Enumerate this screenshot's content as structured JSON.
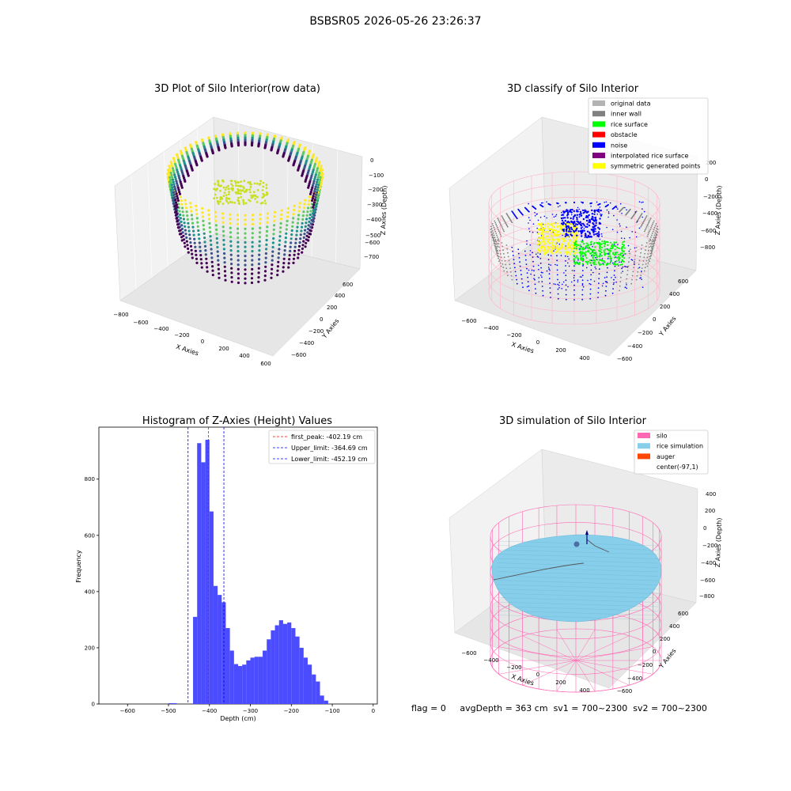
{
  "figure": {
    "suptitle": "BSBSR05 2026-05-26 23:26:37"
  },
  "panels": {
    "raw": {
      "title": "3D Plot of Silo Interior(row data)",
      "xlabel": "X Axies",
      "ylabel": "Y Axies",
      "zlabel": "Z Axies (Depth)",
      "xticks": [
        "−800",
        "−600",
        "−400",
        "−200",
        "0",
        "200",
        "400",
        "600"
      ],
      "yticks": [
        "−600",
        "−400",
        "−200",
        "0",
        "200",
        "400",
        "600"
      ],
      "zticks": [
        "0",
        "−100",
        "−200",
        "−300",
        "−400",
        "−500",
        "−600",
        "−700"
      ]
    },
    "classify": {
      "title": "3D classify of Silo Interior",
      "xlabel": "X Axies",
      "ylabel": "Y Axies",
      "zlabel": "Z Axies (Depth)",
      "xticks": [
        "−600",
        "−400",
        "−200",
        "0",
        "200",
        "400"
      ],
      "yticks": [
        "−600",
        "−400",
        "−200",
        "0",
        "200",
        "400",
        "600"
      ],
      "zticks": [
        "200",
        "0",
        "−200",
        "−400",
        "−600",
        "−800"
      ],
      "legend": [
        {
          "label": "original data",
          "color": "#b3b3b3"
        },
        {
          "label": "inner wall",
          "color": "#808080"
        },
        {
          "label": "rice surface",
          "color": "#00ff00"
        },
        {
          "label": "obstacle",
          "color": "#ff0000"
        },
        {
          "label": "noise",
          "color": "#0000ff"
        },
        {
          "label": "interpolated rice surface",
          "color": "#800080"
        },
        {
          "label": "symmetric generated points",
          "color": "#ffff00"
        }
      ]
    },
    "simulation": {
      "title": "3D simulation of Silo Interior",
      "xlabel": "X Axies",
      "ylabel": "Y Axies",
      "zlabel": "Z Axies (Depth)",
      "xticks": [
        "−600",
        "−400",
        "−200",
        "0",
        "200",
        "400"
      ],
      "yticks": [
        "−600",
        "−400",
        "−200",
        "0",
        "200",
        "400",
        "600"
      ],
      "zticks": [
        "400",
        "200",
        "0",
        "−200",
        "−400",
        "−600",
        "−800"
      ],
      "legend": [
        {
          "label": "silo",
          "color": "#ff69b4"
        },
        {
          "label": "rice simulation",
          "color": "#87ceeb"
        },
        {
          "label": "auger",
          "color": "#ff4500"
        },
        {
          "label": "center(-97,1)",
          "color": ""
        }
      ]
    }
  },
  "chart_data": [
    {
      "type": "bar",
      "title": "Histogram of Z-Axies (Height) Values",
      "xlabel": "Depth (cm)",
      "ylabel": "Frequency",
      "xlim": [
        -670,
        10
      ],
      "ylim": [
        0,
        985
      ],
      "xticks": [
        -600,
        -500,
        -400,
        -300,
        -200,
        -100,
        0
      ],
      "xtick_labels": [
        "−600",
        "−500",
        "−400",
        "−300",
        "−200",
        "−100",
        "0"
      ],
      "yticks": [
        0,
        200,
        400,
        600,
        800
      ],
      "bin_width": 10,
      "bins": [
        {
          "x": -500,
          "value": 3
        },
        {
          "x": -490,
          "value": 3
        },
        {
          "x": -440,
          "value": 310
        },
        {
          "x": -430,
          "value": 928
        },
        {
          "x": -420,
          "value": 860
        },
        {
          "x": -410,
          "value": 940
        },
        {
          "x": -400,
          "value": 685
        },
        {
          "x": -390,
          "value": 420
        },
        {
          "x": -380,
          "value": 388
        },
        {
          "x": -370,
          "value": 362
        },
        {
          "x": -360,
          "value": 270
        },
        {
          "x": -350,
          "value": 190
        },
        {
          "x": -340,
          "value": 142
        },
        {
          "x": -330,
          "value": 135
        },
        {
          "x": -320,
          "value": 140
        },
        {
          "x": -310,
          "value": 155
        },
        {
          "x": -300,
          "value": 165
        },
        {
          "x": -290,
          "value": 168
        },
        {
          "x": -280,
          "value": 168
        },
        {
          "x": -270,
          "value": 190
        },
        {
          "x": -260,
          "value": 230
        },
        {
          "x": -250,
          "value": 262
        },
        {
          "x": -240,
          "value": 280
        },
        {
          "x": -230,
          "value": 298
        },
        {
          "x": -220,
          "value": 285
        },
        {
          "x": -210,
          "value": 290
        },
        {
          "x": -200,
          "value": 270
        },
        {
          "x": -190,
          "value": 240
        },
        {
          "x": -180,
          "value": 200
        },
        {
          "x": -170,
          "value": 165
        },
        {
          "x": -160,
          "value": 140
        },
        {
          "x": -150,
          "value": 105
        },
        {
          "x": -140,
          "value": 80
        },
        {
          "x": -130,
          "value": 30
        },
        {
          "x": -120,
          "value": 12
        }
      ],
      "reference_lines": [
        {
          "label": "first_peak: -402.19 cm",
          "x": -402.19,
          "color": "#ff0000"
        },
        {
          "label": "Upper_limit: -364.69 cm",
          "x": -364.69,
          "color": "#0000ff"
        },
        {
          "label": "Lower_limit: -452.19 cm",
          "x": -452.19,
          "color": "#0000ff"
        }
      ],
      "bar_color": "#4b4bff",
      "legend_position": "top-right"
    }
  ],
  "status": {
    "flag": "flag = 0",
    "avg_depth": "avgDepth = 363 cm",
    "sv1": "sv1 = 700~2300",
    "sv2": "sv2 = 700~2300"
  }
}
